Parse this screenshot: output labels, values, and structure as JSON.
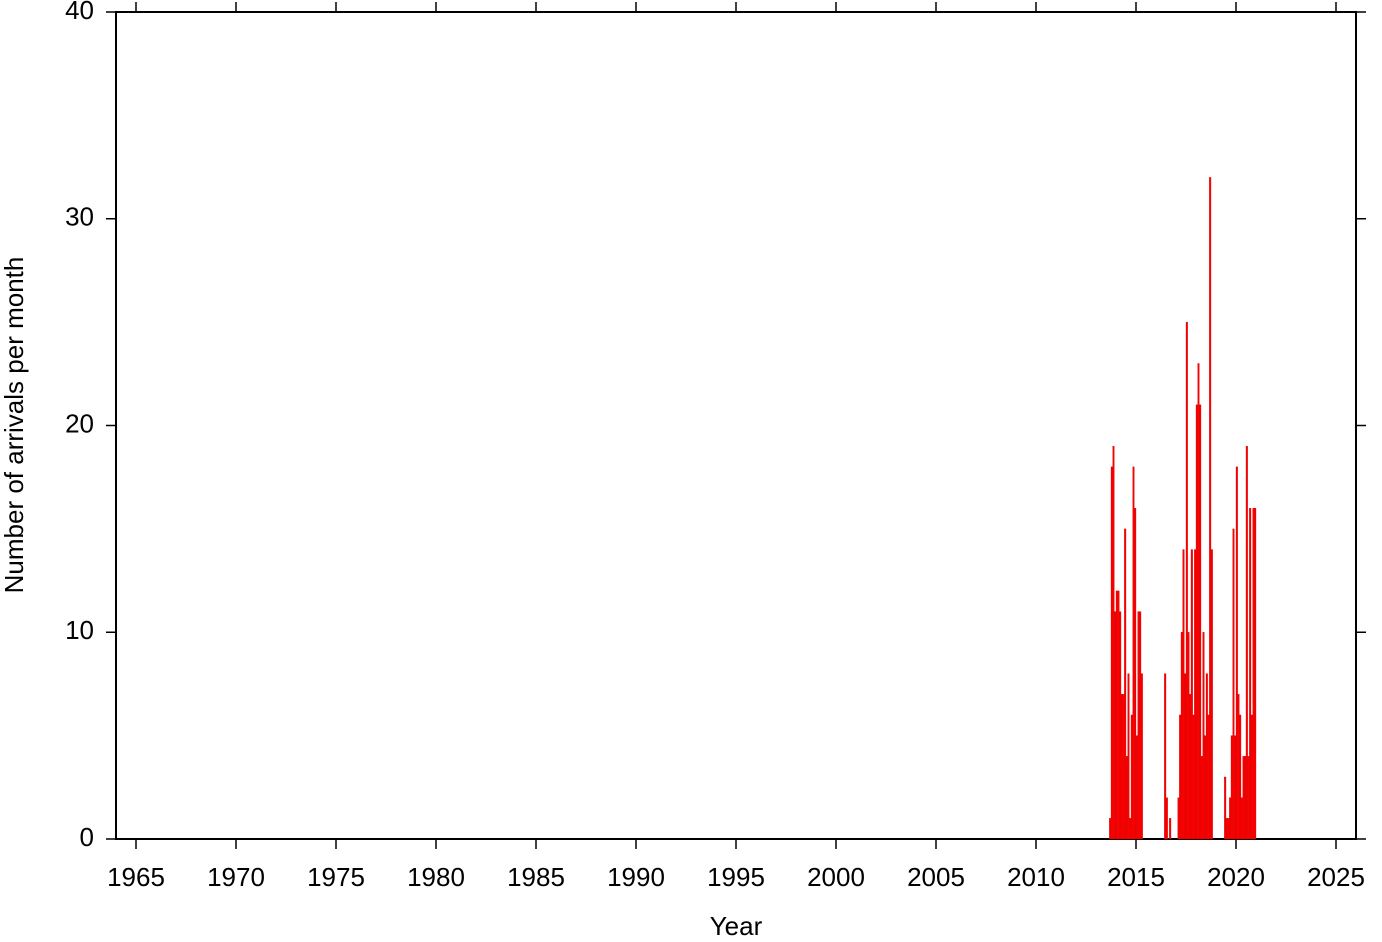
{
  "chart_data": {
    "type": "histogram",
    "x_label": "Year",
    "y_label": "Number of arrivals per month",
    "color": "#ff0000",
    "bins": [
      2013.667,
      2013.75,
      2013.833,
      2013.917,
      2014,
      2014.083,
      2014.167,
      2014.25,
      2014.333,
      2014.417,
      2014.5,
      2014.583,
      2014.667,
      2014.75,
      2014.833,
      2014.917,
      2015,
      2015.083,
      2015.167,
      2015.25,
      2015.333,
      2015.417,
      2015.5,
      2015.583,
      2015.667,
      2015.75,
      2015.833,
      2015.917,
      2016,
      2016.083,
      2016.167,
      2016.25,
      2016.333,
      2016.417,
      2016.5,
      2016.583,
      2016.667,
      2016.75,
      2016.833,
      2016.917,
      2017,
      2017.083,
      2017.167,
      2017.25,
      2017.333,
      2017.417,
      2017.5,
      2017.583,
      2017.667,
      2017.75,
      2017.833,
      2017.917,
      2018,
      2018.083,
      2018.167,
      2018.25,
      2018.333,
      2018.417,
      2018.5,
      2018.583,
      2018.667,
      2018.75,
      2018.833,
      2018.917,
      2019,
      2019.083,
      2019.167,
      2019.25,
      2019.333,
      2019.417,
      2019.5,
      2019.583,
      2019.667,
      2019.75,
      2019.833,
      2019.917,
      2020,
      2020.083,
      2020.167,
      2020.25,
      2020.333,
      2020.417,
      2020.5,
      2020.583,
      2020.667,
      2020.75,
      2020.833,
      2020.917,
      2021
    ],
    "values": [
      1,
      18,
      19,
      11,
      12,
      12,
      11,
      7,
      7,
      15,
      4,
      8,
      1,
      6,
      18,
      16,
      5,
      11,
      11,
      8,
      0,
      0,
      0,
      0,
      0,
      0,
      0,
      0,
      0,
      0,
      0,
      0,
      0,
      8,
      2,
      0,
      1,
      0,
      0,
      0,
      0,
      2,
      6,
      10,
      14,
      8,
      25,
      10,
      7,
      14,
      6,
      14,
      21,
      23,
      21,
      4,
      10,
      5,
      8,
      6,
      32,
      14,
      0,
      0,
      0,
      0,
      0,
      0,
      0,
      3,
      1,
      1,
      2,
      5,
      15,
      5,
      18,
      7,
      6,
      2,
      4,
      4,
      19,
      4,
      16,
      6,
      16,
      16
    ],
    "xlim": [
      1964,
      2026
    ],
    "xticks": [
      1965,
      1970,
      1975,
      1980,
      1985,
      1990,
      1995,
      2000,
      2005,
      2010,
      2015,
      2020,
      2025
    ],
    "ylim": [
      0,
      40
    ],
    "yticks": [
      0,
      10,
      20,
      30,
      40
    ],
    "grid": false
  }
}
